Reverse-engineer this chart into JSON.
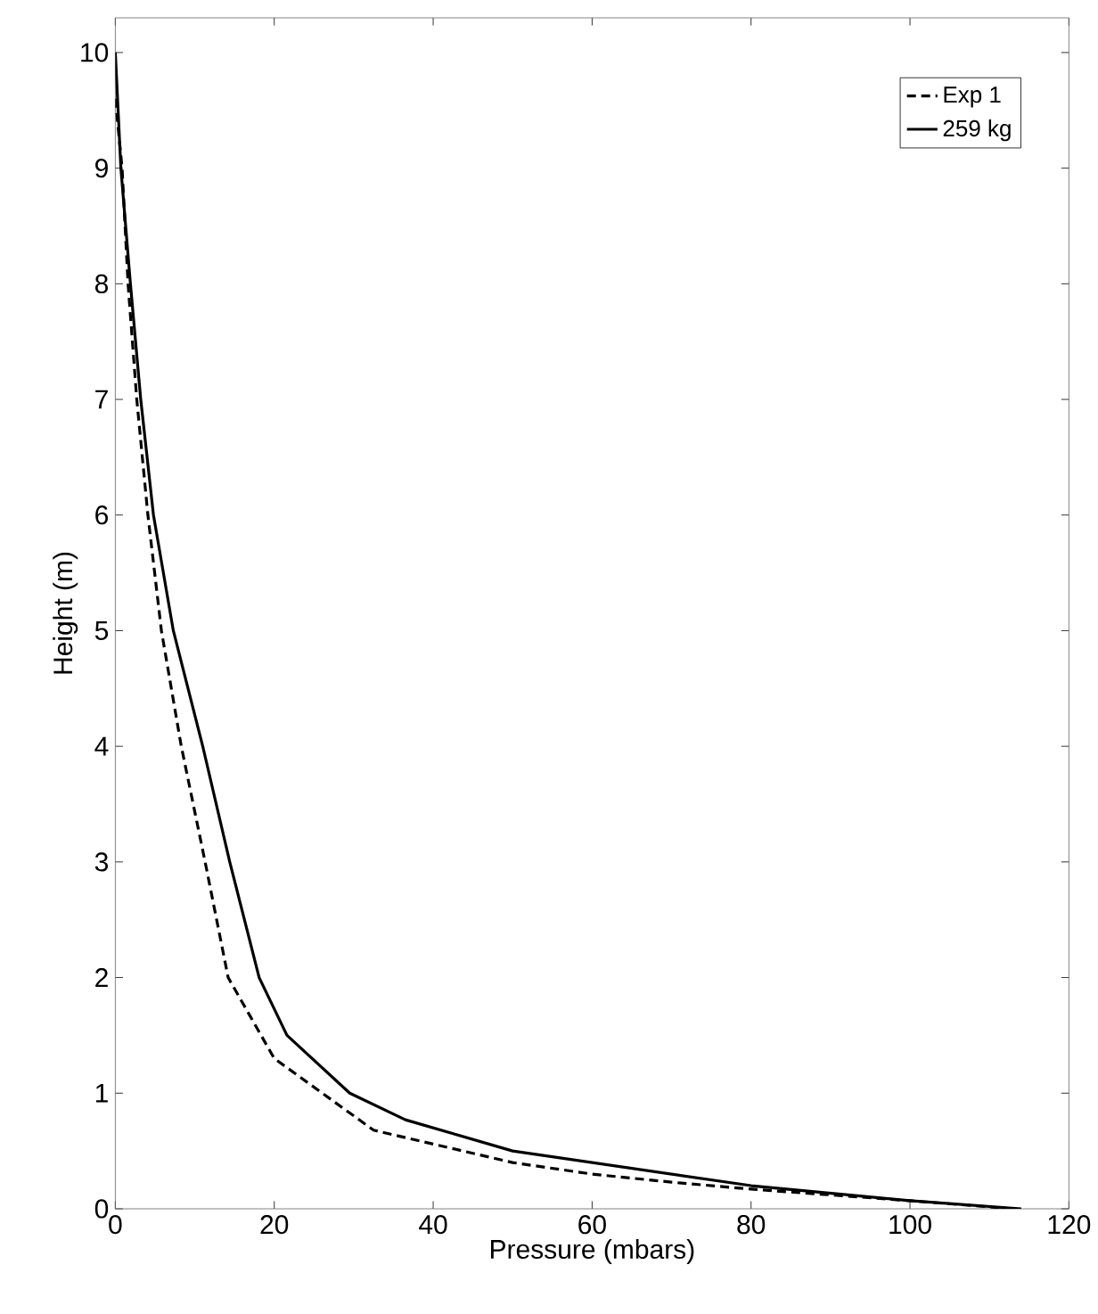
{
  "chart_data": {
    "type": "line",
    "xlabel": "Pressure (mbars)",
    "ylabel": "Height (m)",
    "xlim": [
      0,
      120
    ],
    "ylim": [
      0,
      10.3
    ],
    "xticks": [
      0,
      20,
      40,
      60,
      80,
      100,
      120
    ],
    "yticks": [
      0,
      1,
      2,
      3,
      4,
      5,
      6,
      7,
      8,
      9,
      10
    ],
    "legend": "top right",
    "grid": false,
    "series": [
      {
        "name": "Exp 1",
        "color": "#000000",
        "line_style": "dashed",
        "x": [
          0,
          0.85,
          1.6,
          2.7,
          4.1,
          5.8,
          8.3,
          11.3,
          14.2,
          20,
          32.5,
          50,
          60,
          70,
          80,
          100,
          113
        ],
        "values": [
          9.6,
          9,
          8,
          7,
          6,
          5,
          4,
          3,
          2,
          1.3,
          0.68,
          0.4,
          0.3,
          0.23,
          0.17,
          0.07,
          0
        ]
      },
      {
        "name": "259 kg",
        "color": "#000000",
        "line_style": "solid",
        "x": [
          0,
          0.7,
          1.9,
          3.2,
          4.8,
          7.3,
          11,
          14.4,
          18.1,
          21.6,
          29.5,
          36.5,
          50,
          60,
          70,
          80,
          100,
          114
        ],
        "values": [
          10,
          9,
          8,
          7,
          6,
          5,
          4,
          3,
          2,
          1.5,
          1,
          0.77,
          0.5,
          0.4,
          0.3,
          0.2,
          0.07,
          0
        ]
      }
    ]
  }
}
